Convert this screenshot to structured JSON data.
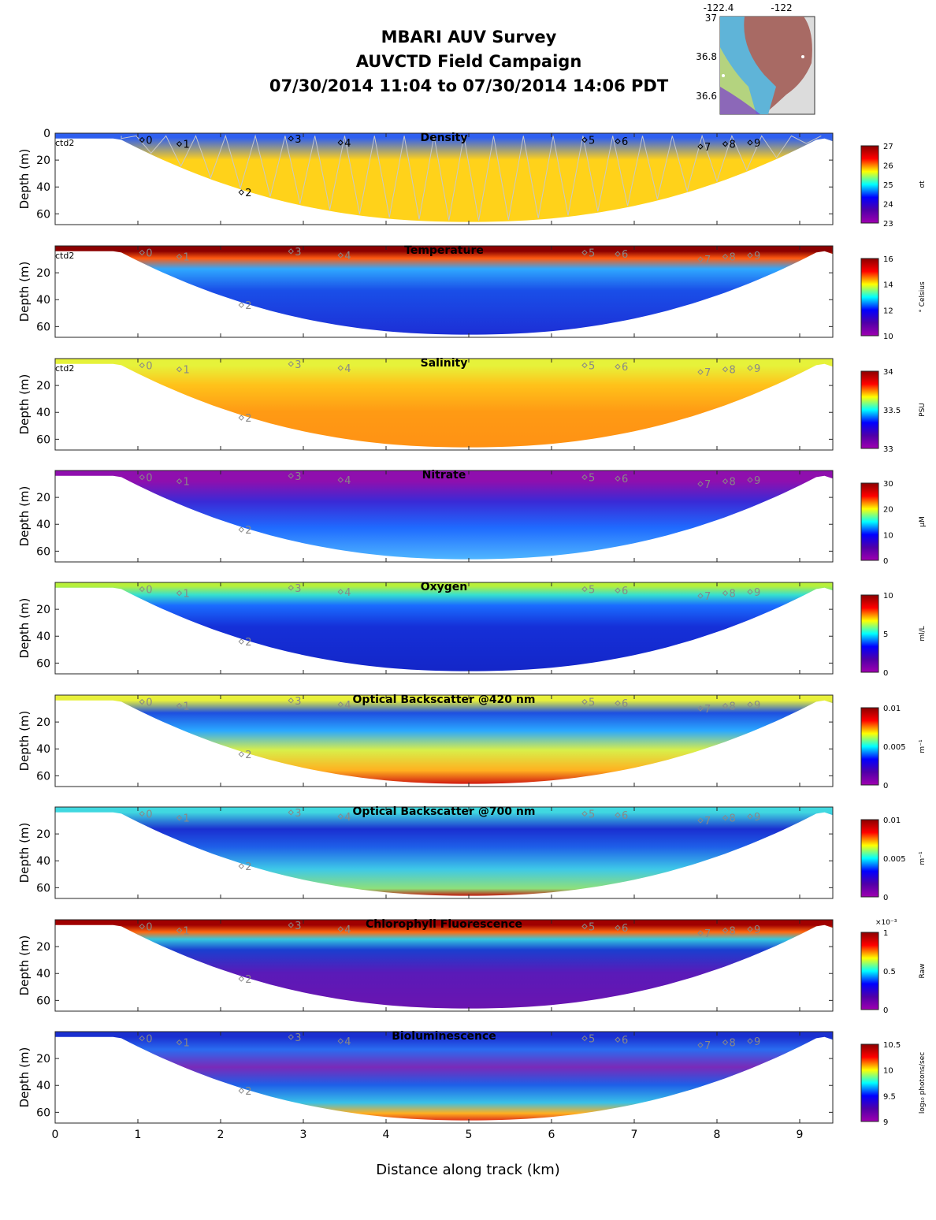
{
  "figure": {
    "title_lines": [
      "MBARI AUV Survey",
      "AUVCTD Field Campaign",
      "07/30/2014 11:04  to 07/30/2014 14:06 PDT"
    ],
    "xlabel": "Distance along track (km)",
    "ylabel": "Depth (m)"
  },
  "inset_map": {
    "lon_ticks": [
      "-122.4",
      "-122"
    ],
    "lat_ticks": [
      "37",
      "36.8",
      "36.6"
    ]
  },
  "chart_data": [
    {
      "type": "heatmap",
      "title": "Density",
      "ylabel": "Depth (m)",
      "xlim": [
        0,
        9.4
      ],
      "ylim": [
        68,
        0
      ],
      "y_ticks": [
        0,
        20,
        40,
        60
      ],
      "x_ticks": [],
      "colorbar": {
        "label": "σt",
        "ticks": [
          "27",
          "26",
          "25",
          "24",
          "23"
        ],
        "exponent": ""
      },
      "profile_label": "ctd2",
      "stations": [
        {
          "label": "0",
          "x": 1.05,
          "depth": 5
        },
        {
          "label": "1",
          "x": 1.5,
          "depth": 8
        },
        {
          "label": "2",
          "x": 2.25,
          "depth": 44
        },
        {
          "label": "3",
          "x": 2.85,
          "depth": 4
        },
        {
          "label": "4",
          "x": 3.45,
          "depth": 7
        },
        {
          "label": "5",
          "x": 6.4,
          "depth": 5
        },
        {
          "label": "6",
          "x": 6.8,
          "depth": 6
        },
        {
          "label": "7",
          "x": 7.8,
          "depth": 10
        },
        {
          "label": "8",
          "x": 8.1,
          "depth": 8
        },
        {
          "label": "9",
          "x": 8.4,
          "depth": 7
        }
      ],
      "colors": [
        "#2e5ff0",
        "#ffd21a",
        "#ffd21a"
      ],
      "stops": [
        0.05,
        0.3,
        1.0
      ],
      "tracks": true,
      "station_color": "#000000"
    },
    {
      "type": "heatmap",
      "title": "Temperature",
      "ylabel": "Depth (m)",
      "xlim": [
        0,
        9.4
      ],
      "ylim": [
        68,
        0
      ],
      "y_ticks": [
        20,
        40,
        60
      ],
      "x_ticks": [],
      "colorbar": {
        "label": "° Celsius",
        "ticks": [
          "16",
          "14",
          "12",
          "10"
        ],
        "exponent": ""
      },
      "profile_label": "ctd2",
      "stations": [
        {
          "label": "0",
          "x": 1.05,
          "depth": 5
        },
        {
          "label": "1",
          "x": 1.5,
          "depth": 8
        },
        {
          "label": "2",
          "x": 2.25,
          "depth": 44
        },
        {
          "label": "3",
          "x": 2.85,
          "depth": 4
        },
        {
          "label": "4",
          "x": 3.45,
          "depth": 7
        },
        {
          "label": "5",
          "x": 6.4,
          "depth": 5
        },
        {
          "label": "6",
          "x": 6.8,
          "depth": 6
        },
        {
          "label": "7",
          "x": 7.8,
          "depth": 10
        },
        {
          "label": "8",
          "x": 8.1,
          "depth": 8
        },
        {
          "label": "9",
          "x": 8.4,
          "depth": 7
        }
      ],
      "colors": [
        "#8b0000",
        "#ff5a10",
        "#2fa8ff",
        "#1a4fe8",
        "#1c2fd6"
      ],
      "stops": [
        0.06,
        0.14,
        0.26,
        0.5,
        1.0
      ],
      "tracks": false,
      "station_color": "#888888"
    },
    {
      "type": "heatmap",
      "title": "Salinity",
      "ylabel": "Depth (m)",
      "xlim": [
        0,
        9.4
      ],
      "ylim": [
        68,
        0
      ],
      "y_ticks": [
        20,
        40,
        60
      ],
      "x_ticks": [],
      "colorbar": {
        "label": "PSU",
        "ticks": [
          "34",
          "33.5",
          "33"
        ],
        "exponent": ""
      },
      "profile_label": "ctd2",
      "stations": [
        {
          "label": "0",
          "x": 1.05,
          "depth": 5
        },
        {
          "label": "1",
          "x": 1.5,
          "depth": 8
        },
        {
          "label": "2",
          "x": 2.25,
          "depth": 44
        },
        {
          "label": "3",
          "x": 2.85,
          "depth": 4
        },
        {
          "label": "4",
          "x": 3.45,
          "depth": 7
        },
        {
          "label": "5",
          "x": 6.4,
          "depth": 5
        },
        {
          "label": "6",
          "x": 6.8,
          "depth": 6
        },
        {
          "label": "7",
          "x": 7.8,
          "depth": 10
        },
        {
          "label": "8",
          "x": 8.1,
          "depth": 8
        },
        {
          "label": "9",
          "x": 8.4,
          "depth": 7
        }
      ],
      "colors": [
        "#e6f23a",
        "#ffc21a",
        "#ff9a14",
        "#ff9214"
      ],
      "stops": [
        0.08,
        0.3,
        0.6,
        1.0
      ],
      "tracks": false,
      "station_color": "#888888"
    },
    {
      "type": "heatmap",
      "title": "Nitrate",
      "ylabel": "Depth (m)",
      "xlim": [
        0,
        9.4
      ],
      "ylim": [
        68,
        0
      ],
      "y_ticks": [
        20,
        40,
        60
      ],
      "x_ticks": [],
      "colorbar": {
        "label": "µM",
        "ticks": [
          "30",
          "20",
          "10",
          "0"
        ],
        "exponent": ""
      },
      "profile_label": "",
      "stations": [
        {
          "label": "0",
          "x": 1.05,
          "depth": 5
        },
        {
          "label": "1",
          "x": 1.5,
          "depth": 8
        },
        {
          "label": "2",
          "x": 2.25,
          "depth": 44
        },
        {
          "label": "3",
          "x": 2.85,
          "depth": 4
        },
        {
          "label": "4",
          "x": 3.45,
          "depth": 7
        },
        {
          "label": "5",
          "x": 6.4,
          "depth": 5
        },
        {
          "label": "6",
          "x": 6.8,
          "depth": 6
        },
        {
          "label": "7",
          "x": 7.8,
          "depth": 10
        },
        {
          "label": "8",
          "x": 8.1,
          "depth": 8
        },
        {
          "label": "9",
          "x": 8.4,
          "depth": 7
        }
      ],
      "colors": [
        "#8f0fae",
        "#3a2ad6",
        "#1f6bff",
        "#4fb6ff"
      ],
      "stops": [
        0.12,
        0.35,
        0.65,
        1.0
      ],
      "tracks": false,
      "station_color": "#888888"
    },
    {
      "type": "heatmap",
      "title": "Oxygen",
      "ylabel": "Depth (m)",
      "xlim": [
        0,
        9.4
      ],
      "ylim": [
        68,
        0
      ],
      "y_ticks": [
        20,
        40,
        60
      ],
      "x_ticks": [],
      "colorbar": {
        "label": "ml/L",
        "ticks": [
          "10",
          "5",
          "0"
        ],
        "exponent": ""
      },
      "profile_label": "",
      "stations": [
        {
          "label": "0",
          "x": 1.05,
          "depth": 5
        },
        {
          "label": "1",
          "x": 1.5,
          "depth": 8
        },
        {
          "label": "2",
          "x": 2.25,
          "depth": 44
        },
        {
          "label": "3",
          "x": 2.85,
          "depth": 4
        },
        {
          "label": "4",
          "x": 3.45,
          "depth": 7
        },
        {
          "label": "5",
          "x": 6.4,
          "depth": 5
        },
        {
          "label": "6",
          "x": 6.8,
          "depth": 6
        },
        {
          "label": "7",
          "x": 7.8,
          "depth": 10
        },
        {
          "label": "8",
          "x": 8.1,
          "depth": 8
        },
        {
          "label": "9",
          "x": 8.4,
          "depth": 7
        }
      ],
      "colors": [
        "#b8f03a",
        "#36e0d0",
        "#1a6cff",
        "#1530d8",
        "#1426c8"
      ],
      "stops": [
        0.04,
        0.14,
        0.26,
        0.5,
        1.0
      ],
      "tracks": false,
      "station_color": "#888888"
    },
    {
      "type": "heatmap",
      "title": "Optical Backscatter @420 nm",
      "ylabel": "Depth (m)",
      "xlim": [
        0,
        9.4
      ],
      "ylim": [
        68,
        0
      ],
      "y_ticks": [
        20,
        40,
        60
      ],
      "x_ticks": [],
      "colorbar": {
        "label": "m⁻¹",
        "ticks": [
          "0.01",
          "0.005",
          "0"
        ],
        "exponent": ""
      },
      "profile_label": "",
      "stations": [
        {
          "label": "0",
          "x": 1.05,
          "depth": 5
        },
        {
          "label": "1",
          "x": 1.5,
          "depth": 8
        },
        {
          "label": "2",
          "x": 2.25,
          "depth": 44
        },
        {
          "label": "3",
          "x": 2.85,
          "depth": 4
        },
        {
          "label": "4",
          "x": 3.45,
          "depth": 7
        },
        {
          "label": "5",
          "x": 6.4,
          "depth": 5
        },
        {
          "label": "6",
          "x": 6.8,
          "depth": 6
        },
        {
          "label": "7",
          "x": 7.8,
          "depth": 10
        },
        {
          "label": "8",
          "x": 8.1,
          "depth": 8
        },
        {
          "label": "9",
          "x": 8.4,
          "depth": 7
        }
      ],
      "colors": [
        "#e8f03a",
        "#1e4fe0",
        "#2aa8ff",
        "#d8ef4a",
        "#ffb020",
        "#d01a10"
      ],
      "stops": [
        0.06,
        0.2,
        0.4,
        0.62,
        0.85,
        1.0
      ],
      "tracks": false,
      "station_color": "#888888"
    },
    {
      "type": "heatmap",
      "title": "Optical Backscatter @700 nm",
      "ylabel": "Depth (m)",
      "xlim": [
        0,
        9.4
      ],
      "ylim": [
        68,
        0
      ],
      "y_ticks": [
        20,
        40,
        60
      ],
      "x_ticks": [],
      "colorbar": {
        "label": "m⁻¹",
        "ticks": [
          "0.01",
          "0.005",
          "0"
        ],
        "exponent": ""
      },
      "profile_label": "",
      "stations": [
        {
          "label": "0",
          "x": 1.05,
          "depth": 5
        },
        {
          "label": "1",
          "x": 1.5,
          "depth": 8
        },
        {
          "label": "2",
          "x": 2.25,
          "depth": 44
        },
        {
          "label": "3",
          "x": 2.85,
          "depth": 4
        },
        {
          "label": "4",
          "x": 3.45,
          "depth": 7
        },
        {
          "label": "5",
          "x": 6.4,
          "depth": 5
        },
        {
          "label": "6",
          "x": 6.8,
          "depth": 6
        },
        {
          "label": "7",
          "x": 7.8,
          "depth": 10
        },
        {
          "label": "8",
          "x": 8.1,
          "depth": 8
        },
        {
          "label": "9",
          "x": 8.4,
          "depth": 7
        }
      ],
      "colors": [
        "#40d8e0",
        "#1a2fd0",
        "#1e5fe8",
        "#3ec8e8",
        "#8ee07a",
        "#c01a10"
      ],
      "stops": [
        0.06,
        0.25,
        0.45,
        0.7,
        0.92,
        1.0
      ],
      "tracks": false,
      "station_color": "#888888"
    },
    {
      "type": "heatmap",
      "title": "Chlorophyll Fluorescence",
      "ylabel": "Depth (m)",
      "xlim": [
        0,
        9.4
      ],
      "ylim": [
        68,
        0
      ],
      "y_ticks": [
        20,
        40,
        60
      ],
      "x_ticks": [],
      "colorbar": {
        "label": "Raw",
        "ticks": [
          "1",
          "0.5",
          "0"
        ],
        "exponent": "×10⁻³"
      },
      "profile_label": "",
      "stations": [
        {
          "label": "0",
          "x": 1.05,
          "depth": 5
        },
        {
          "label": "1",
          "x": 1.5,
          "depth": 8
        },
        {
          "label": "2",
          "x": 2.25,
          "depth": 44
        },
        {
          "label": "3",
          "x": 2.85,
          "depth": 4
        },
        {
          "label": "4",
          "x": 3.45,
          "depth": 7
        },
        {
          "label": "5",
          "x": 6.4,
          "depth": 5
        },
        {
          "label": "6",
          "x": 6.8,
          "depth": 6
        },
        {
          "label": "7",
          "x": 7.8,
          "depth": 10
        },
        {
          "label": "8",
          "x": 8.1,
          "depth": 8
        },
        {
          "label": "9",
          "x": 8.4,
          "depth": 7
        }
      ],
      "colors": [
        "#a00000",
        "#ff6a10",
        "#34c8e0",
        "#1a3fd0",
        "#5a1ab8",
        "#6a14b0"
      ],
      "stops": [
        0.06,
        0.14,
        0.22,
        0.34,
        0.6,
        1.0
      ],
      "tracks": false,
      "station_color": "#888888"
    },
    {
      "type": "heatmap",
      "title": "Bioluminescence",
      "ylabel": "Depth (m)",
      "xlim": [
        0,
        9.4
      ],
      "ylim": [
        68,
        0
      ],
      "y_ticks": [
        20,
        40,
        60
      ],
      "x_ticks": [
        "0",
        "1",
        "2",
        "3",
        "4",
        "5",
        "6",
        "7",
        "8",
        "9"
      ],
      "colorbar": {
        "label": "log₁₀ photons/sec",
        "ticks": [
          "10.5",
          "10",
          "9.5",
          "9"
        ],
        "exponent": ""
      },
      "profile_label": "",
      "stations": [
        {
          "label": "0",
          "x": 1.05,
          "depth": 5
        },
        {
          "label": "1",
          "x": 1.5,
          "depth": 8
        },
        {
          "label": "2",
          "x": 2.25,
          "depth": 44
        },
        {
          "label": "3",
          "x": 2.85,
          "depth": 4
        },
        {
          "label": "4",
          "x": 3.45,
          "depth": 7
        },
        {
          "label": "5",
          "x": 6.4,
          "depth": 5
        },
        {
          "label": "6",
          "x": 6.8,
          "depth": 6
        },
        {
          "label": "7",
          "x": 7.8,
          "depth": 10
        },
        {
          "label": "8",
          "x": 8.1,
          "depth": 8
        },
        {
          "label": "9",
          "x": 8.4,
          "depth": 7
        }
      ],
      "colors": [
        "#1a2fd0",
        "#2a6cf0",
        "#7a2ab8",
        "#1e5fe8",
        "#38c0e8",
        "#ffb020",
        "#e0381a"
      ],
      "stops": [
        0.06,
        0.2,
        0.4,
        0.6,
        0.8,
        0.92,
        1.0
      ],
      "tracks": false,
      "station_color": "#888888"
    }
  ]
}
